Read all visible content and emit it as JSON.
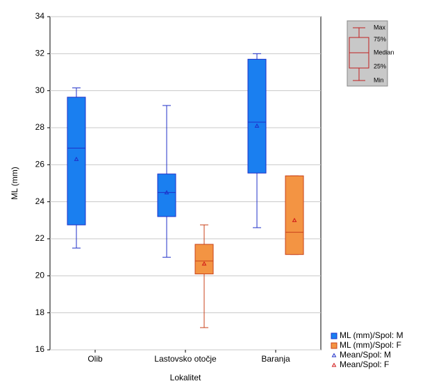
{
  "chart_data": {
    "type": "box",
    "x_label": "Lokalitet",
    "y_label": "ML (mm)",
    "categories": [
      "Olib",
      "Lastovsko otočje",
      "Baranja"
    ],
    "ylim": [
      16,
      34
    ],
    "yticks": [
      16,
      18,
      20,
      22,
      24,
      26,
      28,
      30,
      32,
      34
    ],
    "grid": true,
    "series": [
      {
        "name": "ML (mm)/Spol: M",
        "mean_name": "Mean/Spol: M",
        "color": "#1a7ff0",
        "edge_color": "#1f2fc8",
        "mean_color": "#1f2fc8",
        "min": [
          21.5,
          21.0,
          22.6
        ],
        "q1": [
          22.75,
          23.2,
          25.55
        ],
        "median": [
          26.9,
          24.5,
          28.3
        ],
        "q3": [
          29.65,
          25.5,
          31.7
        ],
        "max": [
          30.15,
          29.2,
          32.0
        ],
        "mean": [
          26.3,
          24.5,
          28.1
        ]
      },
      {
        "name": "ML (mm)/Spol: F",
        "mean_name": "Mean/Spol: F",
        "color": "#f39443",
        "edge_color": "#c8401a",
        "mean_color": "#d01818",
        "min": [
          null,
          17.2,
          21.15
        ],
        "q1": [
          null,
          20.1,
          21.15
        ],
        "median": [
          null,
          20.8,
          22.35
        ],
        "q3": [
          null,
          21.7,
          25.4
        ],
        "max": [
          null,
          22.75,
          25.4
        ],
        "mean": [
          null,
          20.65,
          23.0
        ]
      }
    ],
    "box_key": [
      "Max",
      "75%",
      "Median",
      "25%",
      "Min"
    ]
  }
}
